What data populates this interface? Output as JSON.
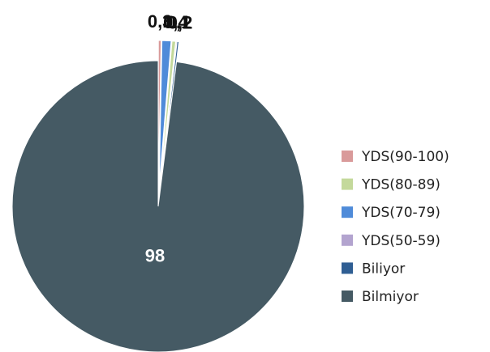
{
  "chart_data": {
    "type": "pie",
    "categories": [
      "YDS(90-100)",
      "YDS(70-79)",
      "YDS(80-89)",
      "YDS(50-59)",
      "Biliyor",
      "Bilmiyor"
    ],
    "values": [
      0.3,
      1,
      0.4,
      0.1,
      0.2,
      98
    ],
    "value_labels": [
      "0,3",
      "1",
      "0,4",
      "0,1",
      "0,2",
      "98"
    ],
    "colors": [
      "#d99a9a",
      "#4f8bd9",
      "#c4d99b",
      "#b3a4cf",
      "#2f5e93",
      "#455a64"
    ],
    "legend": "right"
  }
}
